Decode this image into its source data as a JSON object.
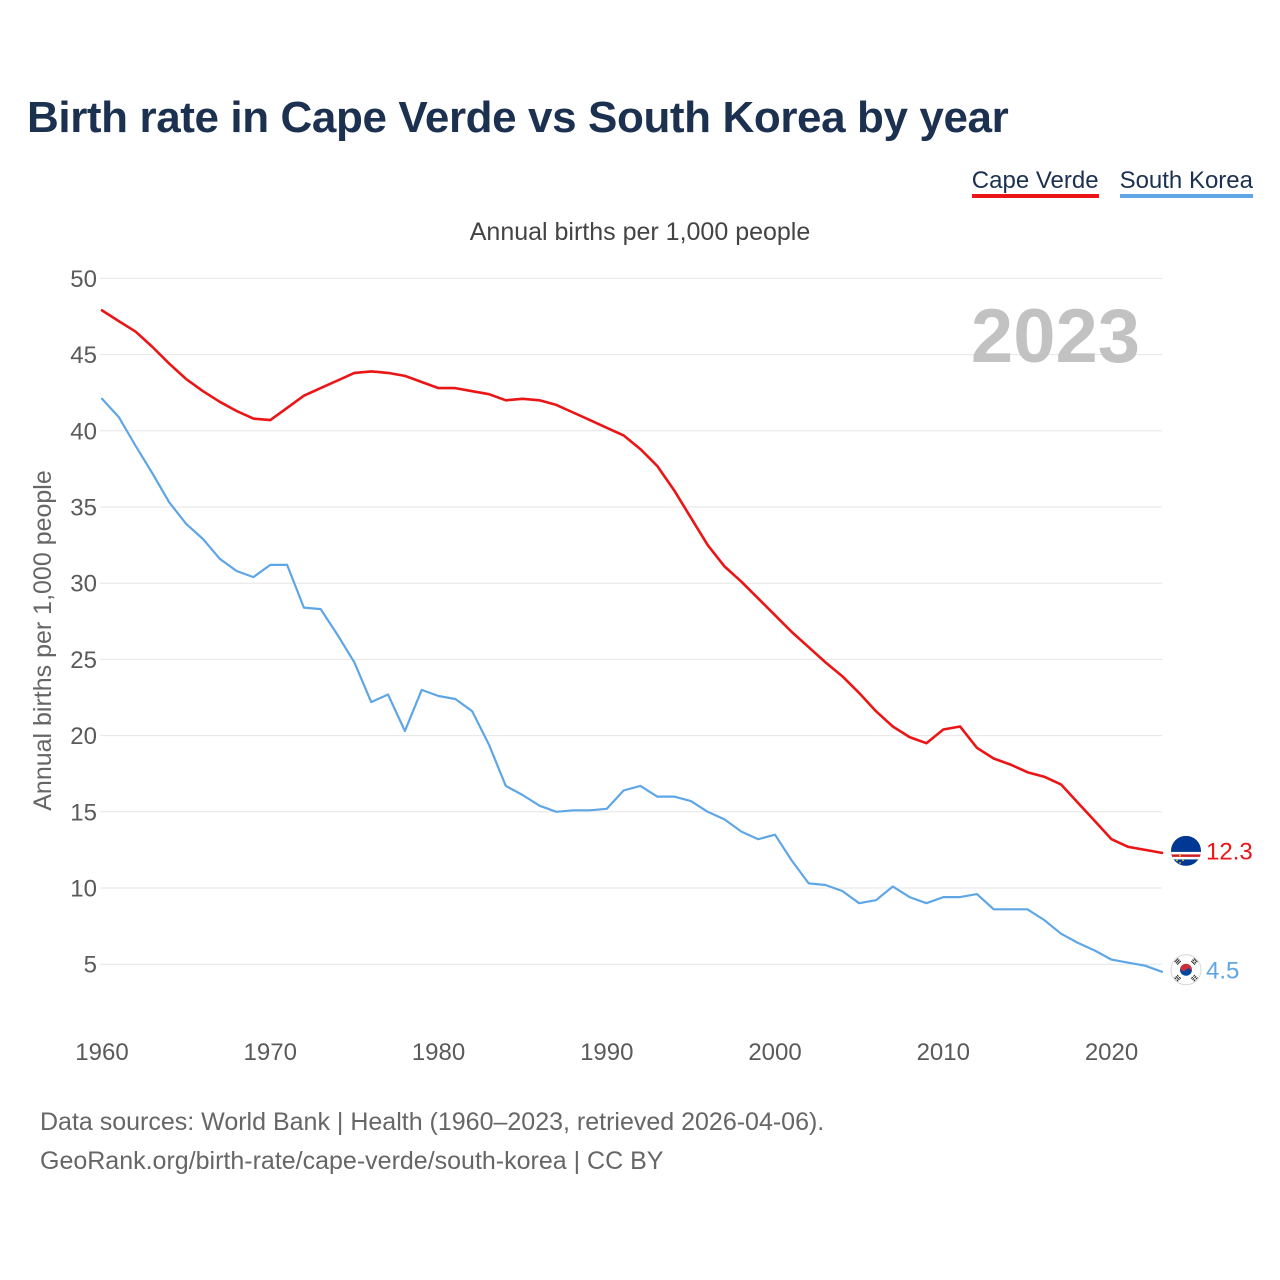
{
  "year_watermark": "2023",
  "footer": {
    "sources": "Data sources: World Bank | Health (1960–2023, retrieved 2026-04-06).",
    "link": "GeoRank.org/birth-rate/cape-verde/south-korea | CC BY"
  },
  "chart_data": {
    "type": "line",
    "title": "Birth rate in Cape Verde vs South Korea by year",
    "subtitle": "Annual births per 1,000 people",
    "xlabel": "",
    "ylabel": "Annual births per 1,000 people",
    "legend": "top-right",
    "grid": true,
    "xlim": [
      1960,
      2023
    ],
    "ylim": [
      0,
      50
    ],
    "xticks": [
      1960,
      1970,
      1980,
      1990,
      2000,
      2010,
      2020
    ],
    "yticks": [
      5,
      10,
      15,
      20,
      25,
      30,
      35,
      40,
      45,
      50
    ],
    "x": [
      1960,
      1961,
      1962,
      1963,
      1964,
      1965,
      1966,
      1967,
      1968,
      1969,
      1970,
      1971,
      1972,
      1973,
      1974,
      1975,
      1976,
      1977,
      1978,
      1979,
      1980,
      1981,
      1982,
      1983,
      1984,
      1985,
      1986,
      1987,
      1988,
      1989,
      1990,
      1991,
      1992,
      1993,
      1994,
      1995,
      1996,
      1997,
      1998,
      1999,
      2000,
      2001,
      2002,
      2003,
      2004,
      2005,
      2006,
      2007,
      2008,
      2009,
      2010,
      2011,
      2012,
      2013,
      2014,
      2015,
      2016,
      2017,
      2018,
      2019,
      2020,
      2021,
      2022,
      2023
    ],
    "series": [
      {
        "name": "Cape Verde",
        "color": "#eb1515",
        "flag": "cape-verde-flag-icon",
        "end_label": "12.3",
        "values": [
          47.9,
          47.2,
          46.5,
          45.5,
          44.4,
          43.4,
          42.6,
          41.9,
          41.3,
          40.8,
          40.7,
          41.5,
          42.3,
          42.8,
          43.3,
          43.8,
          43.9,
          43.8,
          43.6,
          43.2,
          42.8,
          42.8,
          42.6,
          42.4,
          42.0,
          42.1,
          42.0,
          41.7,
          41.2,
          40.7,
          40.2,
          39.7,
          38.8,
          37.7,
          36.1,
          34.3,
          32.5,
          31.1,
          30.1,
          29.0,
          27.9,
          26.8,
          25.8,
          24.8,
          23.9,
          22.8,
          21.6,
          20.6,
          19.9,
          19.5,
          20.4,
          20.6,
          19.2,
          18.5,
          18.1,
          17.6,
          17.3,
          16.8,
          15.6,
          14.4,
          13.2,
          12.7,
          12.5,
          12.3
        ]
      },
      {
        "name": "South Korea",
        "color": "#5ea6e6",
        "flag": "south-korea-flag-icon",
        "end_label": "4.5",
        "values": [
          42.1,
          40.9,
          39.0,
          37.2,
          35.3,
          33.9,
          32.9,
          31.6,
          30.8,
          30.4,
          31.2,
          31.2,
          28.4,
          28.3,
          26.6,
          24.8,
          22.2,
          22.7,
          20.3,
          23.0,
          22.6,
          22.4,
          21.6,
          19.4,
          16.7,
          16.1,
          15.4,
          15.0,
          15.1,
          15.1,
          15.2,
          16.4,
          16.7,
          16.0,
          16.0,
          15.7,
          15.0,
          14.5,
          13.7,
          13.2,
          13.5,
          11.8,
          10.3,
          10.2,
          9.8,
          9.0,
          9.2,
          10.1,
          9.4,
          9.0,
          9.4,
          9.4,
          9.6,
          8.6,
          8.6,
          8.6,
          7.9,
          7.0,
          6.4,
          5.9,
          5.3,
          5.1,
          4.9,
          4.5
        ]
      }
    ]
  }
}
